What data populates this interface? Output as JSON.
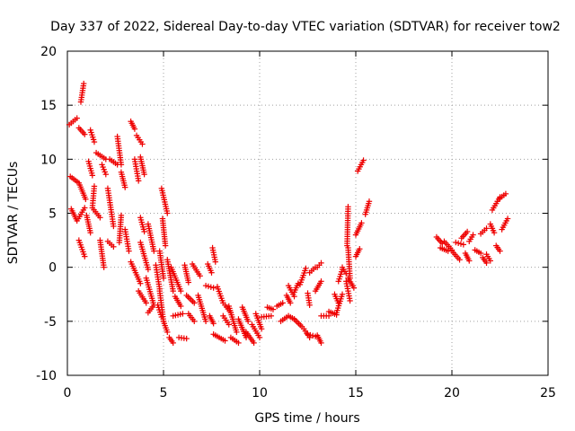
{
  "chart_data": {
    "type": "scatter",
    "title": "Day 337 of 2022, Sidereal Day-to-day VTEC variation (SDTVAR) for receiver tow2",
    "xlabel": "GPS time / hours",
    "ylabel": "SDTVAR / TECUs",
    "xlim": [
      0,
      25
    ],
    "ylim": [
      -10,
      20
    ],
    "xticks": [
      "0",
      "5",
      "10",
      "15",
      "20",
      "25"
    ],
    "yticks": [
      "-10",
      "-5",
      "0",
      "5",
      "10",
      "15",
      "20"
    ],
    "grid": true,
    "marker": "+",
    "color": "#ee0000",
    "series": [
      {
        "name": "SDTVAR",
        "tracks": [
          [
            [
              0.1,
              13.2
            ],
            [
              0.5,
              13.8
            ]
          ],
          [
            [
              0.7,
              15.3
            ],
            [
              0.85,
              17.0
            ]
          ],
          [
            [
              0.15,
              8.4
            ],
            [
              0.6,
              7.8
            ],
            [
              0.95,
              6.3
            ]
          ],
          [
            [
              0.2,
              5.4
            ],
            [
              0.5,
              4.3
            ],
            [
              0.9,
              5.5
            ]
          ],
          [
            [
              0.6,
              2.5
            ],
            [
              0.9,
              1.0
            ]
          ],
          [
            [
              0.6,
              12.9
            ],
            [
              0.9,
              12.3
            ]
          ],
          [
            [
              1.2,
              12.7
            ],
            [
              1.4,
              11.6
            ]
          ],
          [
            [
              1.1,
              9.8
            ],
            [
              1.3,
              8.5
            ]
          ],
          [
            [
              1.4,
              7.5
            ],
            [
              1.3,
              5.5
            ],
            [
              1.7,
              4.6
            ]
          ],
          [
            [
              1.0,
              4.8
            ],
            [
              1.2,
              3.2
            ]
          ],
          [
            [
              1.7,
              2.5
            ],
            [
              1.9,
              0.0
            ]
          ],
          [
            [
              1.5,
              10.6
            ],
            [
              2.0,
              10.0
            ]
          ],
          [
            [
              1.8,
              9.5
            ],
            [
              2.0,
              8.6
            ]
          ],
          [
            [
              2.1,
              7.3
            ],
            [
              2.4,
              3.8
            ]
          ],
          [
            [
              2.2,
              10.0
            ],
            [
              2.6,
              9.5
            ]
          ],
          [
            [
              2.6,
              12.1
            ],
            [
              2.8,
              9.5
            ]
          ],
          [
            [
              2.8,
              8.8
            ],
            [
              3.0,
              7.4
            ]
          ],
          [
            [
              2.1,
              2.4
            ],
            [
              2.4,
              1.9
            ]
          ],
          [
            [
              2.8,
              4.8
            ],
            [
              2.7,
              2.3
            ]
          ],
          [
            [
              3.0,
              3.5
            ],
            [
              3.2,
              1.5
            ]
          ],
          [
            [
              3.3,
              13.5
            ],
            [
              3.5,
              12.8
            ]
          ],
          [
            [
              3.5,
              10.0
            ],
            [
              3.7,
              8.0
            ]
          ],
          [
            [
              3.6,
              12.2
            ],
            [
              3.9,
              11.4
            ]
          ],
          [
            [
              3.8,
              10.2
            ],
            [
              4.0,
              8.6
            ]
          ],
          [
            [
              3.3,
              0.5
            ],
            [
              3.8,
              -1.5
            ]
          ],
          [
            [
              3.7,
              -2.2
            ],
            [
              4.1,
              -3.3
            ]
          ],
          [
            [
              3.8,
              4.6
            ],
            [
              4.0,
              3.3
            ]
          ],
          [
            [
              3.8,
              2.3
            ],
            [
              4.2,
              -0.2
            ]
          ],
          [
            [
              4.2,
              4.0
            ],
            [
              4.5,
              1.5
            ]
          ],
          [
            [
              4.1,
              -1.0
            ],
            [
              4.5,
              -3.5
            ],
            [
              4.2,
              -4.2
            ]
          ],
          [
            [
              4.6,
              0.2
            ],
            [
              4.8,
              -2.0
            ]
          ],
          [
            [
              4.7,
              -3.5
            ],
            [
              4.9,
              -4.6
            ]
          ],
          [
            [
              4.8,
              1.5
            ],
            [
              5.0,
              -1.0
            ]
          ],
          [
            [
              4.9,
              7.3
            ],
            [
              5.2,
              5.0
            ]
          ],
          [
            [
              4.95,
              4.5
            ],
            [
              5.1,
              2.0
            ]
          ],
          [
            [
              4.8,
              -2.2
            ],
            [
              5.0,
              -5.0
            ]
          ],
          [
            [
              5.0,
              -5.0
            ],
            [
              5.2,
              -6.0
            ]
          ],
          [
            [
              5.3,
              -6.5
            ],
            [
              5.5,
              -7.0
            ]
          ],
          [
            [
              5.8,
              -6.5
            ],
            [
              6.2,
              -6.6
            ]
          ],
          [
            [
              5.2,
              0.7
            ],
            [
              5.5,
              -2.2
            ]
          ],
          [
            [
              5.4,
              0.0
            ],
            [
              5.9,
              -2.2
            ]
          ],
          [
            [
              5.5,
              -4.5
            ],
            [
              6.0,
              -4.3
            ]
          ],
          [
            [
              5.6,
              -2.7
            ],
            [
              5.9,
              -3.6
            ]
          ],
          [
            [
              6.1,
              0.2
            ],
            [
              6.3,
              -1.4
            ]
          ],
          [
            [
              6.2,
              -2.6
            ],
            [
              6.6,
              -3.3
            ]
          ],
          [
            [
              6.5,
              0.3
            ],
            [
              6.9,
              -0.8
            ]
          ],
          [
            [
              6.3,
              -4.3
            ],
            [
              6.6,
              -5.0
            ]
          ],
          [
            [
              6.8,
              -2.6
            ],
            [
              7.2,
              -5.0
            ]
          ],
          [
            [
              7.3,
              0.3
            ],
            [
              7.5,
              -0.5
            ]
          ],
          [
            [
              7.2,
              -1.7
            ],
            [
              7.6,
              -1.9
            ]
          ],
          [
            [
              7.4,
              -4.5
            ],
            [
              7.6,
              -5.2
            ]
          ],
          [
            [
              7.55,
              1.8
            ],
            [
              7.7,
              0.5
            ]
          ],
          [
            [
              7.8,
              -1.8
            ],
            [
              8.1,
              -3.3
            ]
          ],
          [
            [
              7.6,
              -6.2
            ],
            [
              8.2,
              -6.8
            ]
          ],
          [
            [
              8.2,
              -3.5
            ],
            [
              8.5,
              -4.2
            ]
          ],
          [
            [
              8.1,
              -4.5
            ],
            [
              8.4,
              -5.3
            ]
          ],
          [
            [
              8.4,
              -3.6
            ],
            [
              8.8,
              -6.0
            ]
          ],
          [
            [
              8.5,
              -6.5
            ],
            [
              8.9,
              -7.0
            ]
          ],
          [
            [
              8.9,
              -4.8
            ],
            [
              9.3,
              -6.5
            ]
          ],
          [
            [
              9.3,
              -6.0
            ],
            [
              9.7,
              -7.0
            ]
          ],
          [
            [
              9.1,
              -3.7
            ],
            [
              9.4,
              -5.0
            ]
          ],
          [
            [
              9.6,
              -5.3
            ],
            [
              10.0,
              -6.5
            ]
          ],
          [
            [
              9.8,
              -4.3
            ],
            [
              10.1,
              -5.7
            ]
          ],
          [
            [
              10.1,
              -4.6
            ],
            [
              10.6,
              -4.5
            ]
          ],
          [
            [
              10.4,
              -3.7
            ],
            [
              10.7,
              -3.9
            ]
          ],
          [
            [
              10.9,
              -3.6
            ],
            [
              11.2,
              -3.3
            ]
          ],
          [
            [
              11.1,
              -5.0
            ],
            [
              11.5,
              -4.5
            ]
          ],
          [
            [
              11.4,
              -2.6
            ],
            [
              11.6,
              -3.3
            ]
          ],
          [
            [
              11.6,
              -4.6
            ],
            [
              11.8,
              -4.8
            ]
          ],
          [
            [
              11.5,
              -1.7
            ],
            [
              11.8,
              -2.7
            ]
          ],
          [
            [
              11.8,
              -2.3
            ],
            [
              12.0,
              -1.5
            ]
          ],
          [
            [
              11.8,
              -4.8
            ],
            [
              12.2,
              -5.5
            ]
          ],
          [
            [
              12.1,
              -1.6
            ],
            [
              12.4,
              -0.1
            ]
          ],
          [
            [
              12.3,
              -5.7
            ],
            [
              12.6,
              -6.5
            ]
          ],
          [
            [
              12.5,
              -2.4
            ],
            [
              12.6,
              -3.5
            ]
          ],
          [
            [
              12.5,
              -6.2
            ],
            [
              12.9,
              -6.4
            ]
          ],
          [
            [
              12.6,
              -0.5
            ],
            [
              12.9,
              0.0
            ]
          ],
          [
            [
              12.9,
              -2.2
            ],
            [
              13.2,
              -1.3
            ]
          ],
          [
            [
              13.0,
              0.0
            ],
            [
              13.2,
              0.4
            ]
          ],
          [
            [
              13.0,
              -6.3
            ],
            [
              13.2,
              -7.0
            ]
          ],
          [
            [
              13.2,
              -4.5
            ],
            [
              13.6,
              -4.5
            ]
          ],
          [
            [
              13.6,
              -4.1
            ],
            [
              14.0,
              -4.4
            ]
          ],
          [
            [
              13.9,
              -2.5
            ],
            [
              14.1,
              -3.3
            ]
          ],
          [
            [
              14.1,
              -1.3
            ],
            [
              14.3,
              -0.2
            ]
          ],
          [
            [
              14.0,
              -4.2
            ],
            [
              14.3,
              -2.5
            ]
          ],
          [
            [
              14.3,
              0.0
            ],
            [
              14.5,
              -0.6
            ]
          ],
          [
            [
              14.5,
              -1.3
            ],
            [
              14.7,
              -3.1
            ]
          ],
          [
            [
              14.6,
              -1.0
            ],
            [
              14.9,
              -1.9
            ]
          ],
          [
            [
              14.55,
              2.0
            ],
            [
              14.6,
              5.6
            ]
          ],
          [
            [
              14.7,
              -1.0
            ],
            [
              14.6,
              1.8
            ]
          ],
          [
            [
              15.0,
              3.0
            ],
            [
              15.3,
              4.1
            ]
          ],
          [
            [
              15.2,
              1.7
            ],
            [
              15.0,
              1.0
            ]
          ],
          [
            [
              15.1,
              8.9
            ],
            [
              15.4,
              9.9
            ]
          ],
          [
            [
              15.5,
              4.9
            ],
            [
              15.7,
              6.1
            ]
          ],
          [
            [
              19.2,
              2.8
            ],
            [
              19.5,
              2.2
            ]
          ],
          [
            [
              19.6,
              2.4
            ],
            [
              20.0,
              1.6
            ]
          ],
          [
            [
              19.4,
              1.8
            ],
            [
              19.8,
              1.5
            ]
          ],
          [
            [
              20.0,
              1.5
            ],
            [
              20.4,
              0.7
            ]
          ],
          [
            [
              20.2,
              2.3
            ],
            [
              20.6,
              2.1
            ]
          ],
          [
            [
              20.5,
              2.7
            ],
            [
              20.8,
              3.3
            ]
          ],
          [
            [
              20.7,
              1.3
            ],
            [
              20.9,
              0.6
            ]
          ],
          [
            [
              20.9,
              2.4
            ],
            [
              21.1,
              3.0
            ]
          ],
          [
            [
              21.2,
              1.6
            ],
            [
              21.5,
              1.3
            ]
          ],
          [
            [
              21.5,
              3.1
            ],
            [
              21.8,
              3.6
            ]
          ],
          [
            [
              21.8,
              1.2
            ],
            [
              22.0,
              0.6
            ]
          ],
          [
            [
              21.6,
              0.9
            ],
            [
              21.8,
              0.4
            ]
          ],
          [
            [
              22.0,
              4.0
            ],
            [
              22.2,
              3.2
            ]
          ],
          [
            [
              22.1,
              5.3
            ],
            [
              22.5,
              6.5
            ]
          ],
          [
            [
              22.3,
              2.0
            ],
            [
              22.5,
              1.5
            ]
          ],
          [
            [
              22.5,
              6.4
            ],
            [
              22.8,
              6.8
            ]
          ],
          [
            [
              22.6,
              3.5
            ],
            [
              22.9,
              4.5
            ]
          ]
        ]
      }
    ]
  }
}
